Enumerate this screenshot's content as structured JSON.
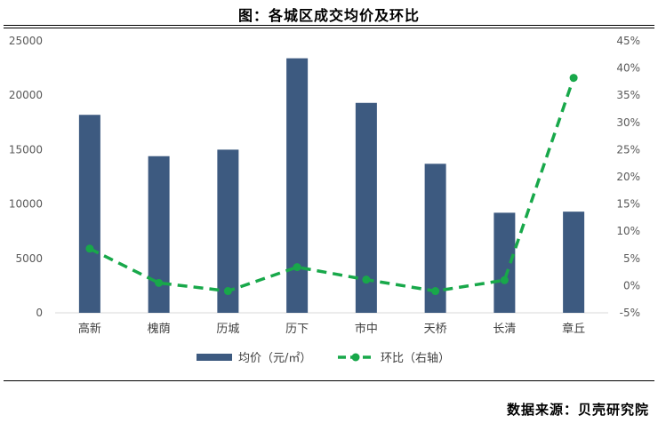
{
  "title": "图：各城区成交均价及环比",
  "source": "数据来源：贝壳研究院",
  "chart_data": {
    "type": "bar",
    "categories": [
      "高新",
      "槐荫",
      "历城",
      "历下",
      "市中",
      "天桥",
      "长清",
      "章丘"
    ],
    "series": [
      {
        "name": "均价（元/㎡）",
        "type": "bar",
        "axis": "left",
        "color": "#3d5a80",
        "values": [
          18200,
          14400,
          15000,
          23400,
          19300,
          13700,
          9200,
          9300
        ]
      },
      {
        "name": "环比（右轴）",
        "type": "line",
        "axis": "right",
        "color": "#18a84a",
        "style": "dashed-with-markers",
        "values": [
          0.068,
          0.005,
          -0.01,
          0.034,
          0.011,
          -0.01,
          0.01,
          0.382
        ]
      }
    ],
    "y_left": {
      "lim": [
        0,
        25000
      ],
      "ticks": [
        0,
        5000,
        10000,
        15000,
        20000,
        25000
      ],
      "tick_labels": [
        "0",
        "5000",
        "10000",
        "15000",
        "20000",
        "25000"
      ]
    },
    "y_right": {
      "lim": [
        -0.05,
        0.45
      ],
      "ticks": [
        -0.05,
        0,
        0.05,
        0.1,
        0.15,
        0.2,
        0.25,
        0.3,
        0.35,
        0.4,
        0.45
      ],
      "tick_labels": [
        "-5%",
        "0%",
        "5%",
        "10%",
        "15%",
        "20%",
        "25%",
        "30%",
        "35%",
        "40%",
        "45%"
      ]
    },
    "grid": false,
    "legend_position": "bottom"
  }
}
